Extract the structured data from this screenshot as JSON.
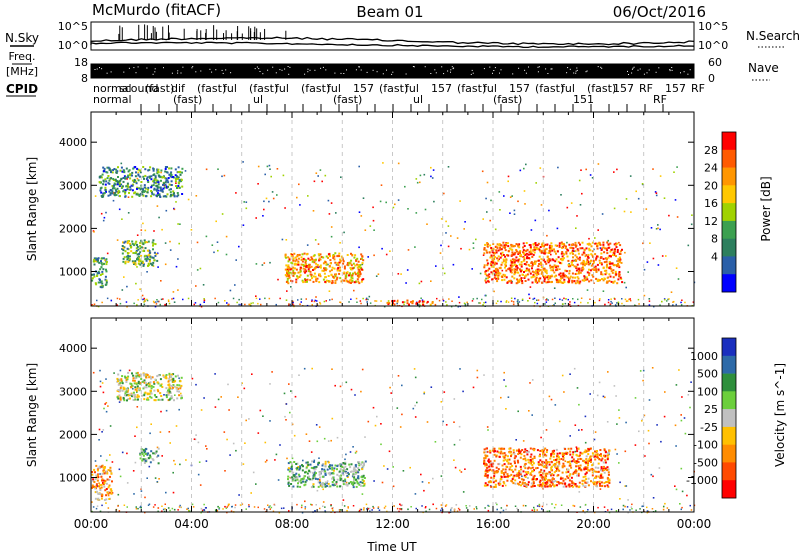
{
  "header": {
    "station": "McMurdo (fitACF)",
    "beam": "Beam 01",
    "date": "06/Oct/2016"
  },
  "panels": {
    "noise": {
      "left_label": "N.Sky",
      "right_label": "N.Search",
      "left_ticks": [
        "10^5",
        "10^0"
      ],
      "right_ticks": [
        "10^5",
        "10^0"
      ]
    },
    "freq": {
      "left_label_1": "Freq.",
      "left_label_2": "[MHz]",
      "left_ticks": [
        "18",
        "8"
      ],
      "right_label": "Nave",
      "right_ticks": [
        "60",
        "0"
      ]
    },
    "cpid": {
      "label": "CPID",
      "row1": [
        "normal",
        "scound",
        "(fast)",
        "dif",
        "(fast)",
        "ful",
        "(fast)",
        "ful",
        "(fast)",
        "ful",
        "157",
        "(fast)",
        "ful",
        "157",
        "(fast)",
        "ful",
        "157",
        "(fast)",
        "ful",
        "(fast)",
        "157",
        "RF",
        "157",
        "RF"
      ],
      "row2": [
        "normal",
        "(fast)",
        "ul",
        "(fast)",
        "ul",
        "(fast)",
        "151",
        "RF"
      ]
    }
  },
  "chart_data": [
    {
      "type": "heatmap",
      "name": "power",
      "ylabel": "Slant Range [km]",
      "yticks": [
        1000,
        2000,
        3000,
        4000
      ],
      "ylim": [
        200,
        4700
      ],
      "colorbar": {
        "label": "Power [dB]",
        "ticks": [
          "28",
          "24",
          "20",
          "16",
          "12",
          "8",
          "4"
        ],
        "colors": [
          "#ff0000",
          "#ff5a00",
          "#ff9600",
          "#ffc800",
          "#a0d200",
          "#3ca050",
          "#2d7f5e",
          "#2a5fa8",
          "#0000ff"
        ]
      },
      "regions": [
        {
          "t0": 0.0,
          "t1": 0.6,
          "r0": 650,
          "r1": 1350,
          "level": 0.35
        },
        {
          "t0": 1.2,
          "t1": 2.6,
          "r0": 1150,
          "r1": 1750,
          "level": 0.4
        },
        {
          "t0": 0.3,
          "t1": 3.6,
          "r0": 2750,
          "r1": 3450,
          "level": 0.3
        },
        {
          "t0": 7.7,
          "t1": 10.8,
          "r0": 750,
          "r1": 1450,
          "level": 0.7
        },
        {
          "t0": 15.6,
          "t1": 21.1,
          "r0": 750,
          "r1": 1700,
          "level": 0.78
        },
        {
          "t0": 11.7,
          "t1": 13.6,
          "r0": 250,
          "r1": 350,
          "level": 0.85
        }
      ]
    },
    {
      "type": "heatmap",
      "name": "velocity",
      "ylabel": "Slant Range [km]",
      "yticks": [
        1000,
        2000,
        3000,
        4000
      ],
      "ylim": [
        200,
        4700
      ],
      "xlabel": "Time UT",
      "xticks": [
        "00:00",
        "04:00",
        "08:00",
        "12:00",
        "16:00",
        "20:00",
        "00:00"
      ],
      "xlim_hours": [
        0,
        24
      ],
      "colorbar": {
        "label": "Velocity [m s^-1]",
        "ticks": [
          "1000",
          "500",
          "100",
          "25",
          "-25",
          "-100",
          "-500",
          "-1000"
        ],
        "colors": [
          "#1a2fbe",
          "#2d6aa8",
          "#2e8f3c",
          "#6ccf3c",
          "#c0c0c0",
          "#ffc000",
          "#ff8c00",
          "#ff4a00",
          "#ff0000"
        ]
      },
      "regions": [
        {
          "t0": 0.0,
          "t1": 0.8,
          "r0": 500,
          "r1": 1300,
          "level": 0.3
        },
        {
          "t0": 1.9,
          "t1": 2.7,
          "r0": 1350,
          "r1": 1700,
          "level": 0.7
        },
        {
          "t0": 7.8,
          "t1": 10.9,
          "r0": 800,
          "r1": 1400,
          "level": 0.65
        },
        {
          "t0": 15.6,
          "t1": 20.6,
          "r0": 800,
          "r1": 1700,
          "level": 0.25
        },
        {
          "t0": 1.0,
          "t1": 3.6,
          "r0": 2800,
          "r1": 3450,
          "level": 0.5
        }
      ]
    }
  ]
}
